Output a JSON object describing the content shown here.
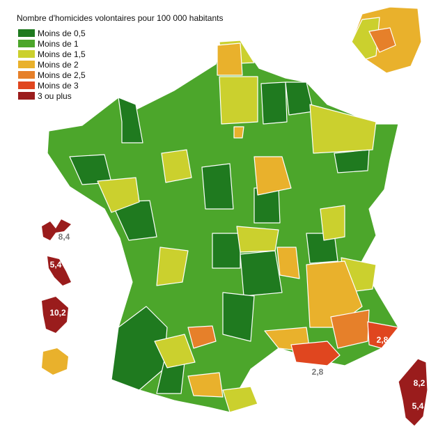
{
  "title": "Nombre d'homicides volontaires pour 100 000 habitants",
  "legend": {
    "items": [
      {
        "label": "Moins de 0,5",
        "color": "#1f7a1f"
      },
      {
        "label": "Moins de 1",
        "color": "#4ca62b"
      },
      {
        "label": "Moins de 1,5",
        "color": "#cbd02e"
      },
      {
        "label": "Moins de 2",
        "color": "#e9b12c"
      },
      {
        "label": "Moins de 2,5",
        "color": "#e6802a"
      },
      {
        "label": "Moins de 3",
        "color": "#e0461f"
      },
      {
        "label": "3 ou plus",
        "color": "#9a1c1c"
      }
    ]
  },
  "map_labels": [
    {
      "text": "8,4"
    },
    {
      "text": "5,4"
    },
    {
      "text": "10,2"
    },
    {
      "text": "2,8"
    },
    {
      "text": "2,8"
    },
    {
      "text": "8,2"
    },
    {
      "text": "5,4"
    }
  ]
}
